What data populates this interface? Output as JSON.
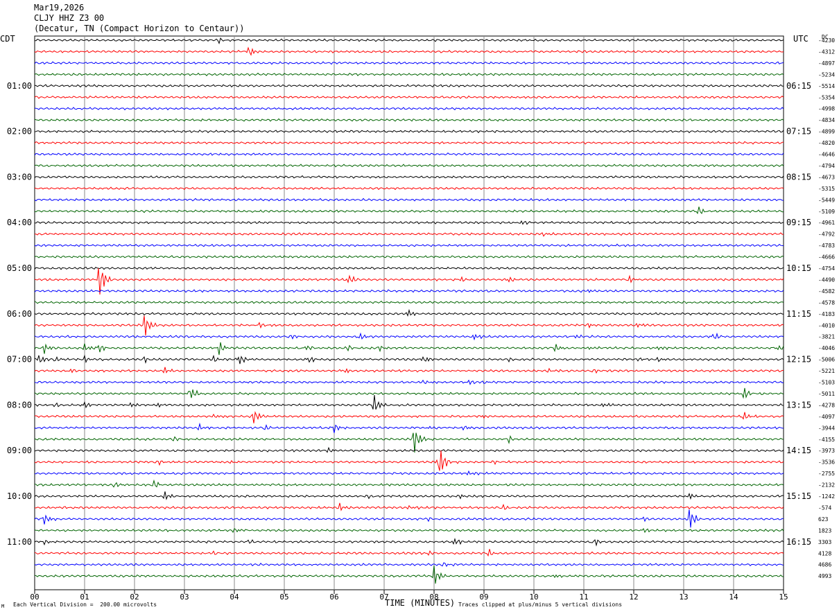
{
  "header": {
    "date": "Mar19,2026",
    "station": "CLJY HHZ Z3 00",
    "location": "(Decatur, TN (Compact Horizon to Centaur))"
  },
  "labels": {
    "left_tz": "CDT",
    "right_tz": "UTC",
    "dc": "DC",
    "x_axis_title": "TIME (MINUTES)",
    "division_note": "Each Vertical Division =  200.00 microvolts",
    "clip_note": "Traces clipped at plus/minus 5 vertical divisions",
    "corner_mark": "M"
  },
  "colors": {
    "trace_cycle": [
      "#000000",
      "#ff0000",
      "#0000ff",
      "#006400"
    ],
    "grid": "#888888"
  },
  "chart_data": {
    "type": "line",
    "x_range": [
      0,
      15
    ],
    "x_ticks": [
      "00",
      "01",
      "02",
      "03",
      "04",
      "05",
      "06",
      "07",
      "08",
      "09",
      "10",
      "11",
      "12",
      "13",
      "14",
      "15"
    ],
    "trace_count": 48,
    "trace_interval_minutes": 15,
    "left_time_labels": [
      {
        "trace": 4,
        "label": "01:00"
      },
      {
        "trace": 8,
        "label": "02:00"
      },
      {
        "trace": 12,
        "label": "03:00"
      },
      {
        "trace": 16,
        "label": "04:00"
      },
      {
        "trace": 20,
        "label": "05:00"
      },
      {
        "trace": 24,
        "label": "06:00"
      },
      {
        "trace": 28,
        "label": "07:00"
      },
      {
        "trace": 32,
        "label": "08:00"
      },
      {
        "trace": 36,
        "label": "09:00"
      },
      {
        "trace": 40,
        "label": "10:00"
      },
      {
        "trace": 44,
        "label": "11:00"
      }
    ],
    "right_time_labels": [
      {
        "trace": 4,
        "label": "06:15"
      },
      {
        "trace": 8,
        "label": "07:15"
      },
      {
        "trace": 12,
        "label": "08:15"
      },
      {
        "trace": 16,
        "label": "09:15"
      },
      {
        "trace": 20,
        "label": "10:15"
      },
      {
        "trace": 24,
        "label": "11:15"
      },
      {
        "trace": 28,
        "label": "12:15"
      },
      {
        "trace": 32,
        "label": "13:15"
      },
      {
        "trace": 36,
        "label": "14:15"
      },
      {
        "trace": 40,
        "label": "15:15"
      },
      {
        "trace": 44,
        "label": "16:15"
      }
    ],
    "dc_offsets": [
      "-4230",
      "-4312",
      "-4897",
      "-5234",
      "-5514",
      "-5354",
      "-4998",
      "-4834",
      "-4899",
      "-4820",
      "-4646",
      "-4794",
      "-4673",
      "-5315",
      "-5449",
      "-5109",
      "-4961",
      "-4792",
      "-4783",
      "-4666",
      "-4754",
      "-4490",
      "-4582",
      "-4578",
      "-4183",
      "-4010",
      "-3821",
      "-4046",
      "-5006",
      "-5221",
      "-5103",
      "-5011",
      "-4278",
      "-4097",
      "-3944",
      "-4155",
      "-3973",
      "-3536",
      "-2755",
      "-2132",
      "-1242",
      "-574",
      "623",
      "1823",
      "3303",
      "4128",
      "4686",
      "4993"
    ],
    "events": [
      [
        3.7,
        0,
        0.6
      ],
      [
        4.3,
        1,
        1.2
      ],
      [
        13.3,
        15,
        0.8
      ],
      [
        9.7,
        16,
        0.7
      ],
      [
        10.2,
        17,
        0.5
      ],
      [
        1.3,
        21,
        3.5
      ],
      [
        6.3,
        21,
        1.0
      ],
      [
        8.5,
        21,
        0.5
      ],
      [
        9.5,
        21,
        0.4
      ],
      [
        11.9,
        21,
        0.6
      ],
      [
        15.0,
        21,
        0.5
      ],
      [
        11.1,
        22,
        0.5
      ],
      [
        7.5,
        24,
        0.7
      ],
      [
        2.2,
        25,
        2.5
      ],
      [
        4.5,
        25,
        0.6
      ],
      [
        11.1,
        25,
        0.5
      ],
      [
        12.1,
        25,
        0.5
      ],
      [
        5.1,
        26,
        0.6
      ],
      [
        6.5,
        26,
        0.6
      ],
      [
        8.8,
        26,
        0.6
      ],
      [
        10.8,
        26,
        0.6
      ],
      [
        13.6,
        26,
        0.7
      ],
      [
        0.2,
        27,
        1.0
      ],
      [
        1.0,
        27,
        0.8
      ],
      [
        1.3,
        27,
        0.8
      ],
      [
        3.7,
        27,
        1.3
      ],
      [
        5.4,
        27,
        0.7
      ],
      [
        6.3,
        27,
        0.6
      ],
      [
        6.9,
        27,
        0.5
      ],
      [
        10.4,
        27,
        0.8
      ],
      [
        11.1,
        27,
        0.5
      ],
      [
        12.5,
        27,
        0.6
      ],
      [
        14.9,
        27,
        0.6
      ],
      [
        0.1,
        28,
        1.2
      ],
      [
        0.4,
        28,
        0.6
      ],
      [
        1.0,
        28,
        0.5
      ],
      [
        2.2,
        28,
        0.5
      ],
      [
        3.6,
        28,
        0.7
      ],
      [
        4.1,
        28,
        1.0
      ],
      [
        5.5,
        28,
        0.6
      ],
      [
        7.8,
        28,
        0.8
      ],
      [
        9.5,
        28,
        0.4
      ],
      [
        12.1,
        28,
        0.4
      ],
      [
        12.5,
        28,
        0.4
      ],
      [
        0.7,
        29,
        0.5
      ],
      [
        2.6,
        29,
        0.7
      ],
      [
        6.2,
        29,
        0.6
      ],
      [
        10.3,
        29,
        0.5
      ],
      [
        11.2,
        29,
        0.5
      ],
      [
        7.8,
        30,
        0.6
      ],
      [
        8.7,
        30,
        0.5
      ],
      [
        9.0,
        30,
        0.4
      ],
      [
        3.1,
        31,
        1.6
      ],
      [
        14.2,
        31,
        1.3
      ],
      [
        0.4,
        32,
        0.5
      ],
      [
        1.0,
        32,
        0.5
      ],
      [
        1.9,
        32,
        0.7
      ],
      [
        2.5,
        32,
        0.4
      ],
      [
        6.8,
        32,
        1.8
      ],
      [
        11.4,
        32,
        0.5
      ],
      [
        3.6,
        33,
        0.5
      ],
      [
        4.4,
        33,
        1.6
      ],
      [
        9.0,
        33,
        0.4
      ],
      [
        14.2,
        33,
        0.8
      ],
      [
        3.3,
        34,
        0.8
      ],
      [
        4.6,
        34,
        0.6
      ],
      [
        6.0,
        34,
        0.8
      ],
      [
        7.9,
        34,
        0.4
      ],
      [
        8.6,
        34,
        0.4
      ],
      [
        2.8,
        35,
        0.5
      ],
      [
        7.6,
        35,
        2.8
      ],
      [
        9.5,
        35,
        0.6
      ],
      [
        5.9,
        36,
        0.6
      ],
      [
        2.5,
        37,
        0.5
      ],
      [
        3.9,
        37,
        0.4
      ],
      [
        8.1,
        37,
        3.5
      ],
      [
        9.2,
        37,
        0.4
      ],
      [
        8.7,
        38,
        0.6
      ],
      [
        11.9,
        38,
        0.4
      ],
      [
        1.6,
        39,
        0.5
      ],
      [
        2.4,
        39,
        0.9
      ],
      [
        10.8,
        39,
        0.3
      ],
      [
        2.6,
        40,
        1.0
      ],
      [
        6.7,
        40,
        0.4
      ],
      [
        8.5,
        40,
        0.5
      ],
      [
        13.1,
        40,
        0.7
      ],
      [
        0.4,
        41,
        0.4
      ],
      [
        6.1,
        41,
        1.0
      ],
      [
        7.5,
        41,
        0.5
      ],
      [
        9.4,
        41,
        0.5
      ],
      [
        0.2,
        42,
        1.0
      ],
      [
        7.9,
        42,
        0.4
      ],
      [
        12.2,
        42,
        0.4
      ],
      [
        13.1,
        42,
        2.6
      ],
      [
        4.0,
        43,
        0.4
      ],
      [
        12.2,
        43,
        0.4
      ],
      [
        0.2,
        44,
        0.4
      ],
      [
        4.3,
        44,
        0.4
      ],
      [
        8.4,
        44,
        0.8
      ],
      [
        11.2,
        44,
        0.8
      ],
      [
        3.6,
        45,
        0.4
      ],
      [
        7.9,
        45,
        0.4
      ],
      [
        9.1,
        45,
        0.6
      ],
      [
        8.2,
        46,
        0.5
      ],
      [
        8.0,
        47,
        2.0
      ],
      [
        10.4,
        47,
        0.4
      ]
    ]
  }
}
